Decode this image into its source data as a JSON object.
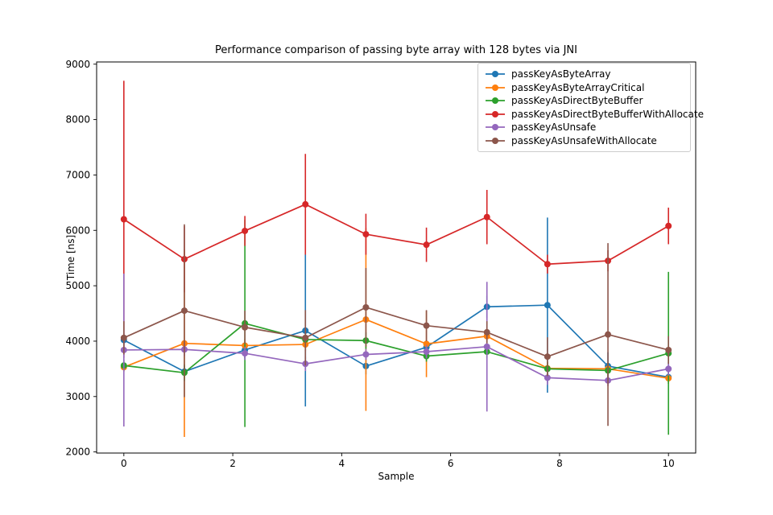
{
  "chart_data": {
    "type": "line",
    "title": "Performance comparison of passing byte array with 128 bytes via JNI",
    "xlabel": "Sample",
    "ylabel": "Time [ns]",
    "xlim": [
      -0.5,
      10.5
    ],
    "ylim": [
      1980,
      9040
    ],
    "xticks": [
      0,
      2,
      4,
      6,
      8,
      10
    ],
    "yticks": [
      2000,
      3000,
      4000,
      5000,
      6000,
      7000,
      8000,
      9000
    ],
    "grid": false,
    "legend_position": "upper right",
    "marker": "circle",
    "x": [
      0,
      1.1111,
      2.2222,
      3.3333,
      4.4444,
      5.5556,
      6.6667,
      7.7778,
      8.8889,
      10
    ],
    "series": [
      {
        "name": "passKeyAsByteArray",
        "color": "#1f77b4",
        "values": [
          4020,
          3450,
          3840,
          4190,
          3550,
          3890,
          4620,
          4650,
          3550,
          3350
        ],
        "yerr": [
          120,
          100,
          150,
          1370,
          150,
          120,
          200,
          1580,
          250,
          120
        ]
      },
      {
        "name": "passKeyAsByteArrayCritical",
        "color": "#ff7f0e",
        "values": [
          3530,
          3960,
          3920,
          3940,
          4390,
          3950,
          4090,
          3510,
          3500,
          3330
        ],
        "yerr": [
          80,
          1690,
          120,
          120,
          1650,
          600,
          150,
          120,
          120,
          100
        ]
      },
      {
        "name": "passKeyAsDirectByteBuffer",
        "color": "#2ca02c",
        "values": [
          3560,
          3430,
          4320,
          4030,
          4010,
          3730,
          3810,
          3500,
          3470,
          3780
        ],
        "yerr": [
          100,
          150,
          1870,
          150,
          150,
          100,
          120,
          120,
          120,
          1470
        ]
      },
      {
        "name": "passKeyAsDirectByteBufferWithAllocate",
        "color": "#d62728",
        "values": [
          6200,
          5480,
          5990,
          6470,
          5930,
          5740,
          6240,
          5390,
          5450,
          6080
        ],
        "yerr": [
          2500,
          600,
          270,
          910,
          370,
          310,
          490,
          170,
          190,
          330
        ]
      },
      {
        "name": "passKeyAsUnsafe",
        "color": "#9467bd",
        "values": [
          3840,
          3850,
          3780,
          3590,
          3760,
          3810,
          3900,
          3340,
          3290,
          3500
        ],
        "yerr": [
          1380,
          120,
          120,
          130,
          100,
          120,
          1170,
          130,
          100,
          120
        ]
      },
      {
        "name": "passKeyAsUnsafeWithAllocate",
        "color": "#8c564b",
        "values": [
          4060,
          4550,
          4250,
          4060,
          4610,
          4280,
          4160,
          3720,
          4120,
          3840
        ],
        "yerr": [
          300,
          1560,
          300,
          500,
          710,
          280,
          200,
          350,
          1650,
          250
        ]
      }
    ]
  }
}
